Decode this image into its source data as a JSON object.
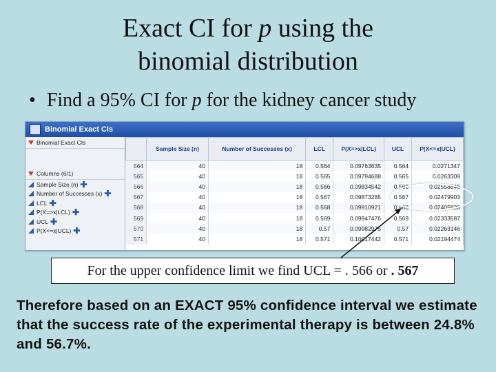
{
  "title_line1_prefix": "Exact CI for ",
  "title_line1_p": "p",
  "title_line1_suffix": " using the",
  "title_line2": "binomial distribution",
  "bullet_prefix": "Find a 95% CI for ",
  "bullet_p": "p",
  "bullet_suffix": " for the kidney cancer study",
  "window": {
    "title": "Binomial Exact CIs",
    "left_pane": {
      "header": "Binomial Exact CIs",
      "columns_header": "Columns (6/1)",
      "columns": [
        "Sample Size (n)",
        "Number of Successes (x)",
        "LCL",
        "P(X=>x|LCL)",
        "UCL",
        "P(X<=x|UCL)"
      ]
    },
    "table": {
      "headers": [
        "",
        "Sample Size (n)",
        "Number of Successes (x)",
        "LCL",
        "P(X=>x|LCL)",
        "UCL",
        "P(X<=x|UCL)"
      ],
      "rows": [
        [
          "564",
          "40",
          "18",
          "0.564",
          "0.09763635",
          "0.564",
          "0.0271347"
        ],
        [
          "565",
          "40",
          "18",
          "0.565",
          "0.09794688",
          "0.565",
          "0.0263309"
        ],
        [
          "566",
          "40",
          "18",
          "0.566",
          "0.09834542",
          "0.566",
          "0.02558846"
        ],
        [
          "567",
          "40",
          "18",
          "0.567",
          "0.09873285",
          "0.567",
          "0.02479903"
        ],
        [
          "568",
          "40",
          "18",
          "0.568",
          "0.09910921",
          "0.568",
          "0.02405828"
        ],
        [
          "569",
          "40",
          "18",
          "0.569",
          "0.09947476",
          "0.569",
          "0.02333587"
        ],
        [
          "570",
          "40",
          "18",
          "0.57",
          "0.09982975",
          "0.57",
          "0.02263146"
        ],
        [
          "571",
          "40",
          "18",
          "0.571",
          "0.10017442",
          "0.571",
          "0.02194474"
        ]
      ]
    }
  },
  "callout_prefix": "For the upper confidence limit we find UCL = . 566 or ",
  "callout_bold": ". 567",
  "conclusion": "Therefore based on an EXACT 95% confidence interval we estimate that the success rate of the experimental therapy is between 24.8% and 56.7%."
}
